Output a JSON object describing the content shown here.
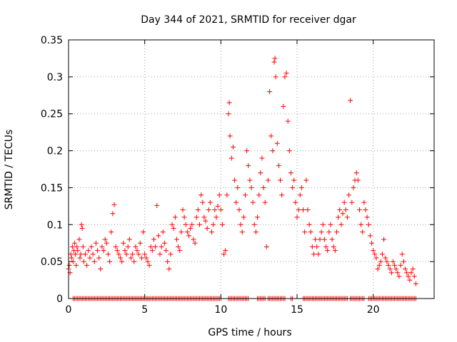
{
  "chart_data": {
    "type": "scatter",
    "title": "Day 344 of 2021, SRMTID for receiver dgar",
    "xlabel": "GPS time / hours",
    "ylabel": "SRMTID / TECUs",
    "xlim": [
      0,
      24
    ],
    "ylim": [
      0,
      0.35
    ],
    "x_ticks": [
      0,
      5,
      10,
      15,
      20
    ],
    "x_tick_labels": [
      "0",
      "5",
      "10",
      "15",
      "20"
    ],
    "y_ticks": [
      0,
      0.05,
      0.1,
      0.15,
      0.2,
      0.25,
      0.3,
      0.35
    ],
    "y_tick_labels": [
      "0",
      "0.05",
      "0.1",
      "0.15",
      "0.2",
      "0.25",
      "0.3",
      "0.35"
    ],
    "grid": true,
    "marker": "plus",
    "series": [
      {
        "name": "SRMTID",
        "color": "#ff0000",
        "points": [
          [
            0.0,
            0.04
          ],
          [
            0.05,
            0.045
          ],
          [
            0.1,
            0.035
          ],
          [
            0.15,
            0.06
          ],
          [
            0.2,
            0.055
          ],
          [
            0.25,
            0.07
          ],
          [
            0.3,
            0.05
          ],
          [
            0.35,
            0.065
          ],
          [
            0.4,
            0.075
          ],
          [
            0.45,
            0.06
          ],
          [
            0.5,
            0.045
          ],
          [
            0.55,
            0.07
          ],
          [
            0.6,
            0.065
          ],
          [
            0.7,
            0.08
          ],
          [
            0.75,
            0.055
          ],
          [
            0.8,
            0.06
          ],
          [
            0.85,
            0.1
          ],
          [
            0.9,
            0.095
          ],
          [
            0.95,
            0.07
          ],
          [
            1.0,
            0.05
          ],
          [
            1.1,
            0.06
          ],
          [
            1.2,
            0.045
          ],
          [
            1.3,
            0.065
          ],
          [
            1.4,
            0.055
          ],
          [
            1.5,
            0.07
          ],
          [
            1.6,
            0.06
          ],
          [
            1.7,
            0.05
          ],
          [
            1.8,
            0.075
          ],
          [
            1.9,
            0.065
          ],
          [
            2.0,
            0.055
          ],
          [
            2.1,
            0.04
          ],
          [
            2.2,
            0.07
          ],
          [
            2.3,
            0.065
          ],
          [
            2.4,
            0.08
          ],
          [
            2.5,
            0.075
          ],
          [
            2.6,
            0.06
          ],
          [
            2.7,
            0.05
          ],
          [
            2.8,
            0.09
          ],
          [
            2.9,
            0.115
          ],
          [
            3.0,
            0.127
          ],
          [
            3.1,
            0.07
          ],
          [
            3.2,
            0.065
          ],
          [
            3.3,
            0.06
          ],
          [
            3.4,
            0.055
          ],
          [
            3.5,
            0.05
          ],
          [
            3.6,
            0.075
          ],
          [
            3.7,
            0.065
          ],
          [
            3.8,
            0.06
          ],
          [
            3.9,
            0.07
          ],
          [
            4.0,
            0.08
          ],
          [
            4.1,
            0.055
          ],
          [
            4.2,
            0.06
          ],
          [
            4.3,
            0.05
          ],
          [
            4.4,
            0.07
          ],
          [
            4.5,
            0.065
          ],
          [
            4.6,
            0.06
          ],
          [
            4.7,
            0.075
          ],
          [
            4.8,
            0.055
          ],
          [
            4.9,
            0.09
          ],
          [
            5.0,
            0.06
          ],
          [
            5.1,
            0.055
          ],
          [
            5.2,
            0.05
          ],
          [
            5.3,
            0.045
          ],
          [
            5.4,
            0.07
          ],
          [
            5.5,
            0.065
          ],
          [
            5.6,
            0.08
          ],
          [
            5.7,
            0.07
          ],
          [
            5.8,
            0.126
          ],
          [
            5.9,
            0.085
          ],
          [
            6.0,
            0.06
          ],
          [
            6.1,
            0.07
          ],
          [
            6.2,
            0.09
          ],
          [
            6.3,
            0.075
          ],
          [
            6.4,
            0.065
          ],
          [
            6.5,
            0.05
          ],
          [
            6.6,
            0.04
          ],
          [
            6.7,
            0.06
          ],
          [
            6.8,
            0.1
          ],
          [
            6.9,
            0.095
          ],
          [
            7.0,
            0.11
          ],
          [
            7.1,
            0.08
          ],
          [
            7.2,
            0.07
          ],
          [
            7.3,
            0.065
          ],
          [
            7.4,
            0.09
          ],
          [
            7.5,
            0.12
          ],
          [
            7.6,
            0.11
          ],
          [
            7.7,
            0.1
          ],
          [
            7.8,
            0.09
          ],
          [
            7.9,
            0.085
          ],
          [
            8.0,
            0.095
          ],
          [
            8.1,
            0.1
          ],
          [
            8.2,
            0.08
          ],
          [
            8.3,
            0.075
          ],
          [
            8.4,
            0.11
          ],
          [
            8.5,
            0.12
          ],
          [
            8.6,
            0.1
          ],
          [
            8.7,
            0.14
          ],
          [
            8.8,
            0.13
          ],
          [
            8.9,
            0.11
          ],
          [
            9.0,
            0.105
          ],
          [
            9.1,
            0.095
          ],
          [
            9.2,
            0.12
          ],
          [
            9.3,
            0.13
          ],
          [
            9.4,
            0.09
          ],
          [
            9.5,
            0.1
          ],
          [
            9.6,
            0.12
          ],
          [
            9.7,
            0.11
          ],
          [
            9.8,
            0.125
          ],
          [
            9.9,
            0.14
          ],
          [
            10.0,
            0.12
          ],
          [
            10.1,
            0.1
          ],
          [
            10.2,
            0.06
          ],
          [
            10.3,
            0.065
          ],
          [
            10.4,
            0.14
          ],
          [
            10.5,
            0.25
          ],
          [
            10.55,
            0.265
          ],
          [
            10.6,
            0.22
          ],
          [
            10.7,
            0.19
          ],
          [
            10.8,
            0.205
          ],
          [
            10.9,
            0.16
          ],
          [
            11.0,
            0.13
          ],
          [
            11.1,
            0.15
          ],
          [
            11.2,
            0.12
          ],
          [
            11.3,
            0.1
          ],
          [
            11.4,
            0.09
          ],
          [
            11.5,
            0.11
          ],
          [
            11.6,
            0.14
          ],
          [
            11.7,
            0.2
          ],
          [
            11.8,
            0.18
          ],
          [
            11.9,
            0.16
          ],
          [
            12.0,
            0.15
          ],
          [
            12.1,
            0.13
          ],
          [
            12.2,
            0.1
          ],
          [
            12.3,
            0.09
          ],
          [
            12.4,
            0.11
          ],
          [
            12.5,
            0.14
          ],
          [
            12.6,
            0.17
          ],
          [
            12.7,
            0.19
          ],
          [
            12.8,
            0.15
          ],
          [
            12.9,
            0.13
          ],
          [
            13.0,
            0.07
          ],
          [
            13.1,
            0.16
          ],
          [
            13.2,
            0.28
          ],
          [
            13.3,
            0.22
          ],
          [
            13.4,
            0.2
          ],
          [
            13.5,
            0.32
          ],
          [
            13.55,
            0.325
          ],
          [
            13.6,
            0.3
          ],
          [
            13.7,
            0.21
          ],
          [
            13.8,
            0.18
          ],
          [
            13.9,
            0.16
          ],
          [
            14.0,
            0.14
          ],
          [
            14.1,
            0.26
          ],
          [
            14.2,
            0.3
          ],
          [
            14.3,
            0.305
          ],
          [
            14.4,
            0.24
          ],
          [
            14.5,
            0.2
          ],
          [
            14.6,
            0.17
          ],
          [
            14.7,
            0.15
          ],
          [
            14.8,
            0.16
          ],
          [
            14.9,
            0.13
          ],
          [
            15.0,
            0.11
          ],
          [
            15.1,
            0.12
          ],
          [
            15.2,
            0.14
          ],
          [
            15.3,
            0.15
          ],
          [
            15.4,
            0.12
          ],
          [
            15.5,
            0.09
          ],
          [
            15.6,
            0.16
          ],
          [
            15.7,
            0.12
          ],
          [
            15.8,
            0.1
          ],
          [
            15.9,
            0.09
          ],
          [
            16.0,
            0.07
          ],
          [
            16.1,
            0.06
          ],
          [
            16.2,
            0.08
          ],
          [
            16.3,
            0.07
          ],
          [
            16.4,
            0.06
          ],
          [
            16.5,
            0.08
          ],
          [
            16.6,
            0.09
          ],
          [
            16.7,
            0.1
          ],
          [
            16.8,
            0.08
          ],
          [
            16.9,
            0.07
          ],
          [
            17.0,
            0.065
          ],
          [
            17.1,
            0.09
          ],
          [
            17.2,
            0.1
          ],
          [
            17.3,
            0.08
          ],
          [
            17.4,
            0.07
          ],
          [
            17.5,
            0.065
          ],
          [
            17.6,
            0.09
          ],
          [
            17.7,
            0.11
          ],
          [
            17.8,
            0.12
          ],
          [
            17.9,
            0.1
          ],
          [
            18.0,
            0.115
          ],
          [
            18.1,
            0.13
          ],
          [
            18.2,
            0.12
          ],
          [
            18.3,
            0.11
          ],
          [
            18.4,
            0.14
          ],
          [
            18.5,
            0.268
          ],
          [
            18.6,
            0.13
          ],
          [
            18.7,
            0.15
          ],
          [
            18.8,
            0.16
          ],
          [
            18.9,
            0.17
          ],
          [
            19.0,
            0.16
          ],
          [
            19.1,
            0.12
          ],
          [
            19.2,
            0.1
          ],
          [
            19.3,
            0.09
          ],
          [
            19.4,
            0.13
          ],
          [
            19.5,
            0.12
          ],
          [
            19.6,
            0.11
          ],
          [
            19.7,
            0.1
          ],
          [
            19.8,
            0.085
          ],
          [
            19.9,
            0.075
          ],
          [
            20.0,
            0.065
          ],
          [
            20.1,
            0.06
          ],
          [
            20.2,
            0.055
          ],
          [
            20.3,
            0.04
          ],
          [
            20.4,
            0.045
          ],
          [
            20.5,
            0.05
          ],
          [
            20.6,
            0.06
          ],
          [
            20.7,
            0.08
          ],
          [
            20.8,
            0.055
          ],
          [
            20.9,
            0.05
          ],
          [
            21.0,
            0.045
          ],
          [
            21.1,
            0.04
          ],
          [
            21.2,
            0.035
          ],
          [
            21.3,
            0.05
          ],
          [
            21.4,
            0.045
          ],
          [
            21.5,
            0.04
          ],
          [
            21.6,
            0.035
          ],
          [
            21.7,
            0.03
          ],
          [
            21.8,
            0.045
          ],
          [
            21.9,
            0.06
          ],
          [
            22.0,
            0.05
          ],
          [
            22.1,
            0.04
          ],
          [
            22.2,
            0.035
          ],
          [
            22.3,
            0.03
          ],
          [
            22.4,
            0.025
          ],
          [
            22.5,
            0.035
          ],
          [
            22.6,
            0.04
          ],
          [
            22.7,
            0.03
          ],
          [
            22.8,
            0.02
          ]
        ],
        "zero_baseline": {
          "ranges": [
            [
              0.3,
              10.0
            ],
            [
              10.5,
              11.8
            ],
            [
              12.4,
              12.9
            ],
            [
              13.1,
              14.2
            ],
            [
              14.6,
              14.7
            ],
            [
              15.4,
              18.3
            ],
            [
              18.5,
              19.4
            ],
            [
              19.7,
              22.8
            ]
          ],
          "value": 0
        }
      }
    ]
  }
}
